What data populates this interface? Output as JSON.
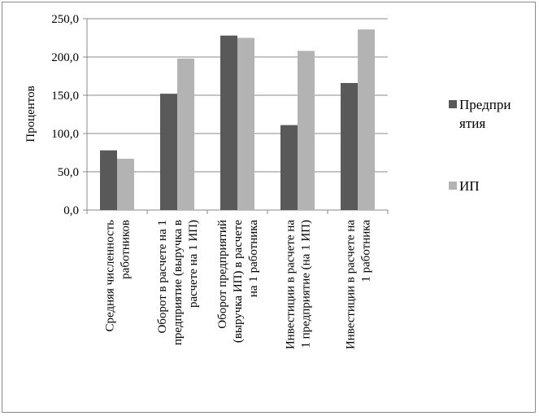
{
  "chart_data": {
    "type": "bar",
    "title": "",
    "xlabel": "",
    "ylabel": "Процентов",
    "ylim": [
      0,
      250
    ],
    "yticks": [
      0,
      50,
      100,
      150,
      200,
      250
    ],
    "ytick_labels": [
      "0,0",
      "50,0",
      "100,0",
      "150,0",
      "200,0",
      "250,0"
    ],
    "grid": true,
    "legend_position": "right",
    "categories": [
      [
        "Средняя численность",
        "работников"
      ],
      [
        "Оборот в расчете на 1",
        "предприятие (выручка в",
        "расчете на 1 ИП)"
      ],
      [
        "Оборот предприятий",
        "(выручка ИП) в расчете",
        "на 1 работника"
      ],
      [
        "Инвестиции в расчете на",
        "1 предприятие (на 1 ИП)"
      ],
      [
        "Инвестиции в расчете на",
        "1 работника"
      ]
    ],
    "series": [
      {
        "name": [
          "Предпри",
          "ятия"
        ],
        "color": "#595959",
        "values": [
          78,
          152,
          228,
          111,
          166
        ]
      },
      {
        "name": [
          "ИП"
        ],
        "color": "#b3b3b3",
        "values": [
          67,
          198,
          225,
          208,
          236
        ]
      }
    ]
  }
}
